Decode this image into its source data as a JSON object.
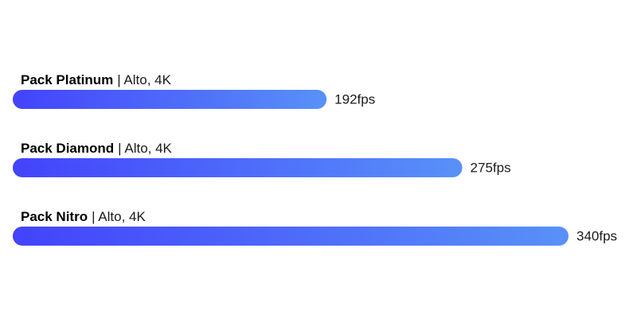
{
  "chart_data": {
    "type": "bar",
    "orientation": "horizontal",
    "categories": [
      "Pack Platinum",
      "Pack Diamond",
      "Pack Nitro"
    ],
    "category_details": [
      "| Alto, 4K",
      "| Alto, 4K",
      "| Alto, 4K"
    ],
    "values": [
      192,
      275,
      340
    ],
    "value_labels": [
      "192fps",
      "275fps",
      "340fps"
    ],
    "colors": [
      "#4343fb",
      "#5891f8"
    ]
  }
}
